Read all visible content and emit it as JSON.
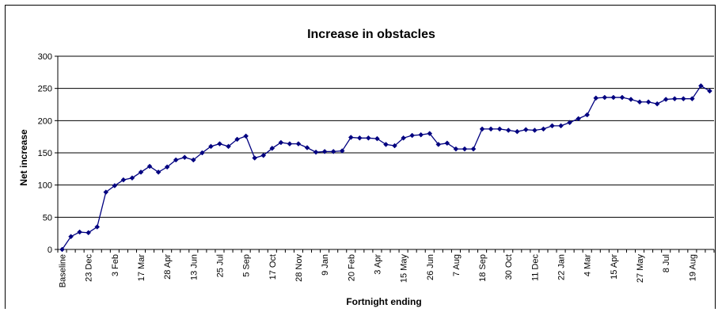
{
  "chart_data": {
    "type": "line",
    "title": "Increase in obstacles",
    "xlabel": "Fortnight ending",
    "ylabel": "Net increase",
    "ylim": [
      0,
      300
    ],
    "yticks": [
      0,
      50,
      100,
      150,
      200,
      250,
      300
    ],
    "grid": "horizontal",
    "legend": "none",
    "categories": [
      "Baseline",
      "",
      "",
      "23 Dec",
      "",
      "",
      "3 Feb",
      "",
      "",
      "17 Mar",
      "",
      "",
      "28 Apr",
      "",
      "",
      "13 Jun",
      "",
      "",
      "25 Jul",
      "",
      "",
      "5 Sep",
      "",
      "",
      "17 Oct",
      "",
      "",
      "28 Nov",
      "",
      "",
      "9 Jan",
      "",
      "",
      "20 Feb",
      "",
      "",
      "3 Apr",
      "",
      "",
      "15 May",
      "",
      "",
      "26 Jun",
      "",
      "",
      "7 Aug",
      "",
      "",
      "18 Sep",
      "",
      "",
      "30 Oct",
      "",
      "",
      "11 Dec",
      "",
      "",
      "22 Jan",
      "",
      "",
      "4 Mar",
      "",
      "",
      "15 Apr",
      "",
      "",
      "27 May",
      "",
      "",
      "8 Jul",
      "",
      "",
      "19 Aug",
      "",
      ""
    ],
    "series": [
      {
        "values": [
          0,
          20,
          27,
          26,
          35,
          89,
          99,
          108,
          111,
          120,
          129,
          120,
          128,
          139,
          143,
          139,
          150,
          160,
          164,
          160,
          171,
          176,
          142,
          146,
          157,
          166,
          164,
          164,
          158,
          151,
          152,
          152,
          153,
          174,
          173,
          173,
          172,
          163,
          161,
          173,
          177,
          178,
          180,
          163,
          165,
          156,
          156,
          156,
          187,
          187,
          187,
          185,
          183,
          186,
          185,
          187,
          192,
          192,
          197,
          203,
          209,
          235,
          236,
          236,
          236,
          233,
          229,
          229,
          226,
          233,
          234,
          234,
          234,
          254,
          246
        ],
        "color": "#000080"
      }
    ]
  }
}
